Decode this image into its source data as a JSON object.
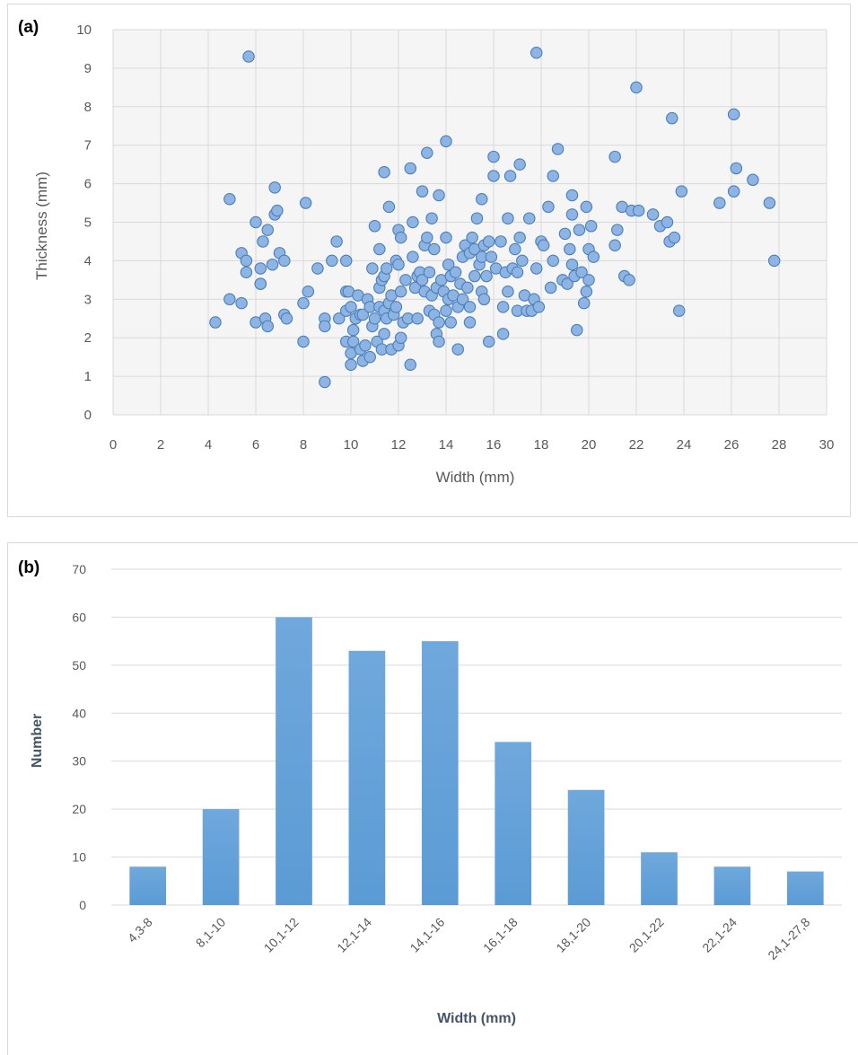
{
  "chart_data": [
    {
      "panel_label": "(a)",
      "type": "scatter",
      "xlabel": "Width (mm)",
      "ylabel": "Thickness (mm)",
      "xlim": [
        0,
        30
      ],
      "ylim": [
        0,
        10
      ],
      "xticks": [
        "0",
        "2",
        "4",
        "6",
        "8",
        "10",
        "12",
        "14",
        "16",
        "18",
        "20",
        "22",
        "24",
        "26",
        "28",
        "30"
      ],
      "yticks": [
        "0",
        "1",
        "2",
        "3",
        "4",
        "5",
        "6",
        "7",
        "8",
        "9",
        "10"
      ],
      "grid": true,
      "marker_color": "#8db4e2",
      "marker_edge": "#4a7ebb",
      "points": [
        [
          4.3,
          2.4
        ],
        [
          4.9,
          5.6
        ],
        [
          4.9,
          3.0
        ],
        [
          5.4,
          4.2
        ],
        [
          5.4,
          2.9
        ],
        [
          5.6,
          3.7
        ],
        [
          5.6,
          4.0
        ],
        [
          5.7,
          9.3
        ],
        [
          6.0,
          2.4
        ],
        [
          6.0,
          5.0
        ],
        [
          6.2,
          3.4
        ],
        [
          6.2,
          3.8
        ],
        [
          6.2,
          3.4
        ],
        [
          6.3,
          4.5
        ],
        [
          6.4,
          2.5
        ],
        [
          6.5,
          2.3
        ],
        [
          6.5,
          4.8
        ],
        [
          6.7,
          3.9
        ],
        [
          6.8,
          5.9
        ],
        [
          6.8,
          5.2
        ],
        [
          6.9,
          5.3
        ],
        [
          7.0,
          4.2
        ],
        [
          7.2,
          2.6
        ],
        [
          7.2,
          4.0
        ],
        [
          7.3,
          2.5
        ],
        [
          8.0,
          1.9
        ],
        [
          8.0,
          2.9
        ],
        [
          8.1,
          5.5
        ],
        [
          8.2,
          3.2
        ],
        [
          8.6,
          3.8
        ],
        [
          8.9,
          2.5
        ],
        [
          8.9,
          2.3
        ],
        [
          8.9,
          0.85
        ],
        [
          9.2,
          4.0
        ],
        [
          9.4,
          4.5
        ],
        [
          9.5,
          2.5
        ],
        [
          9.8,
          3.2
        ],
        [
          9.8,
          1.9
        ],
        [
          9.8,
          2.7
        ],
        [
          9.8,
          4.0
        ],
        [
          9.9,
          3.2
        ],
        [
          10.0,
          2.8
        ],
        [
          10.0,
          1.3
        ],
        [
          10.0,
          1.6
        ],
        [
          10.1,
          1.9
        ],
        [
          10.1,
          2.2
        ],
        [
          10.2,
          2.5
        ],
        [
          10.3,
          3.1
        ],
        [
          10.4,
          2.6
        ],
        [
          10.4,
          1.7
        ],
        [
          10.5,
          1.4
        ],
        [
          10.5,
          2.6
        ],
        [
          10.6,
          1.8
        ],
        [
          10.7,
          3.0
        ],
        [
          10.8,
          1.5
        ],
        [
          10.8,
          2.8
        ],
        [
          10.9,
          3.8
        ],
        [
          10.9,
          2.3
        ],
        [
          11.0,
          4.9
        ],
        [
          11.0,
          2.5
        ],
        [
          11.1,
          1.9
        ],
        [
          11.2,
          3.3
        ],
        [
          11.2,
          2.8
        ],
        [
          11.2,
          4.3
        ],
        [
          11.3,
          1.7
        ],
        [
          11.3,
          3.5
        ],
        [
          11.4,
          6.3
        ],
        [
          11.4,
          2.7
        ],
        [
          11.4,
          2.1
        ],
        [
          11.4,
          3.6
        ],
        [
          11.5,
          3.8
        ],
        [
          11.5,
          2.5
        ],
        [
          11.6,
          2.9
        ],
        [
          11.6,
          5.4
        ],
        [
          11.7,
          1.7
        ],
        [
          11.7,
          3.1
        ],
        [
          11.8,
          2.6
        ],
        [
          11.9,
          4.0
        ],
        [
          11.9,
          2.8
        ],
        [
          12.0,
          1.8
        ],
        [
          12.0,
          4.8
        ],
        [
          12.0,
          3.9
        ],
        [
          12.1,
          4.6
        ],
        [
          12.1,
          2.0
        ],
        [
          12.1,
          3.2
        ],
        [
          12.2,
          2.4
        ],
        [
          12.3,
          3.5
        ],
        [
          12.4,
          2.5
        ],
        [
          12.5,
          6.4
        ],
        [
          12.5,
          1.3
        ],
        [
          12.6,
          5.0
        ],
        [
          12.6,
          4.1
        ],
        [
          12.7,
          3.3
        ],
        [
          12.8,
          3.6
        ],
        [
          12.8,
          2.5
        ],
        [
          12.9,
          3.7
        ],
        [
          13.0,
          5.8
        ],
        [
          13.0,
          3.5
        ],
        [
          13.1,
          4.4
        ],
        [
          13.1,
          3.2
        ],
        [
          13.2,
          4.6
        ],
        [
          13.2,
          6.8
        ],
        [
          13.3,
          2.7
        ],
        [
          13.3,
          3.7
        ],
        [
          13.4,
          5.1
        ],
        [
          13.4,
          3.1
        ],
        [
          13.5,
          2.6
        ],
        [
          13.5,
          4.3
        ],
        [
          13.6,
          2.1
        ],
        [
          13.6,
          3.3
        ],
        [
          13.7,
          5.7
        ],
        [
          13.7,
          1.9
        ],
        [
          13.7,
          2.4
        ],
        [
          13.8,
          3.5
        ],
        [
          13.9,
          3.2
        ],
        [
          14.0,
          7.1
        ],
        [
          14.0,
          4.6
        ],
        [
          14.0,
          2.7
        ],
        [
          14.1,
          3.0
        ],
        [
          14.1,
          3.9
        ],
        [
          14.2,
          2.4
        ],
        [
          14.2,
          3.6
        ],
        [
          14.3,
          3.1
        ],
        [
          14.4,
          3.7
        ],
        [
          14.5,
          1.7
        ],
        [
          14.5,
          2.8
        ],
        [
          14.6,
          3.4
        ],
        [
          14.7,
          4.1
        ],
        [
          14.7,
          3.0
        ],
        [
          14.8,
          4.4
        ],
        [
          14.9,
          3.3
        ],
        [
          15.0,
          2.8
        ],
        [
          15.0,
          4.2
        ],
        [
          15.0,
          2.4
        ],
        [
          15.1,
          4.6
        ],
        [
          15.2,
          3.6
        ],
        [
          15.2,
          4.3
        ],
        [
          15.3,
          5.1
        ],
        [
          15.4,
          3.9
        ],
        [
          15.5,
          5.6
        ],
        [
          15.5,
          4.1
        ],
        [
          15.5,
          3.2
        ],
        [
          15.6,
          3.0
        ],
        [
          15.6,
          4.4
        ],
        [
          15.7,
          3.6
        ],
        [
          15.8,
          1.9
        ],
        [
          15.8,
          4.5
        ],
        [
          15.9,
          4.1
        ],
        [
          16.0,
          6.7
        ],
        [
          16.0,
          6.2
        ],
        [
          16.1,
          3.8
        ],
        [
          16.3,
          4.5
        ],
        [
          16.4,
          2.8
        ],
        [
          16.4,
          2.1
        ],
        [
          16.5,
          3.7
        ],
        [
          16.6,
          3.2
        ],
        [
          16.6,
          5.1
        ],
        [
          16.7,
          6.2
        ],
        [
          16.8,
          3.8
        ],
        [
          16.9,
          4.3
        ],
        [
          17.0,
          2.7
        ],
        [
          17.0,
          3.7
        ],
        [
          17.1,
          6.5
        ],
        [
          17.1,
          4.6
        ],
        [
          17.2,
          4.0
        ],
        [
          17.3,
          3.1
        ],
        [
          17.4,
          2.7
        ],
        [
          17.5,
          5.1
        ],
        [
          17.6,
          2.7
        ],
        [
          17.7,
          3.0
        ],
        [
          17.8,
          9.4
        ],
        [
          17.8,
          3.8
        ],
        [
          17.9,
          2.8
        ],
        [
          18.0,
          4.5
        ],
        [
          18.1,
          4.4
        ],
        [
          18.3,
          5.4
        ],
        [
          18.4,
          3.3
        ],
        [
          18.5,
          6.2
        ],
        [
          18.5,
          4.0
        ],
        [
          18.7,
          6.9
        ],
        [
          18.9,
          3.5
        ],
        [
          19.0,
          4.7
        ],
        [
          19.1,
          3.4
        ],
        [
          19.2,
          4.3
        ],
        [
          19.3,
          3.9
        ],
        [
          19.3,
          5.7
        ],
        [
          19.3,
          5.2
        ],
        [
          19.4,
          3.6
        ],
        [
          19.5,
          2.2
        ],
        [
          19.6,
          4.8
        ],
        [
          19.7,
          3.7
        ],
        [
          19.8,
          2.9
        ],
        [
          19.9,
          3.2
        ],
        [
          19.9,
          5.4
        ],
        [
          20.0,
          4.3
        ],
        [
          20.0,
          3.5
        ],
        [
          20.1,
          4.9
        ],
        [
          20.2,
          4.1
        ],
        [
          21.1,
          4.4
        ],
        [
          21.1,
          6.7
        ],
        [
          21.2,
          4.8
        ],
        [
          21.4,
          5.4
        ],
        [
          21.5,
          3.6
        ],
        [
          21.7,
          3.5
        ],
        [
          21.8,
          5.3
        ],
        [
          22.0,
          8.5
        ],
        [
          22.1,
          5.3
        ],
        [
          22.7,
          5.2
        ],
        [
          23.0,
          4.9
        ],
        [
          23.3,
          5.0
        ],
        [
          23.4,
          4.5
        ],
        [
          23.5,
          7.7
        ],
        [
          23.6,
          4.6
        ],
        [
          23.8,
          2.7
        ],
        [
          23.9,
          5.8
        ],
        [
          25.5,
          5.5
        ],
        [
          26.1,
          7.8
        ],
        [
          26.1,
          5.8
        ],
        [
          26.2,
          6.4
        ],
        [
          26.9,
          6.1
        ],
        [
          27.6,
          5.5
        ],
        [
          27.8,
          4.0
        ]
      ]
    },
    {
      "panel_label": "(b)",
      "type": "bar",
      "xlabel": "Width (mm)",
      "ylabel": "Number",
      "ylim": [
        0,
        70
      ],
      "yticks": [
        "0",
        "10",
        "20",
        "30",
        "40",
        "50",
        "60",
        "70"
      ],
      "grid": true,
      "bar_color": "#5b9bd5",
      "categories": [
        "4,3-8",
        "8,1-10",
        "10,1-12",
        "12,1-14",
        "14,1-16",
        "16,1-18",
        "18,1-20",
        "20,1-22",
        "22,1-24",
        "24,1-27,8"
      ],
      "values": [
        8,
        20,
        60,
        53,
        55,
        34,
        24,
        11,
        8,
        7
      ]
    }
  ]
}
